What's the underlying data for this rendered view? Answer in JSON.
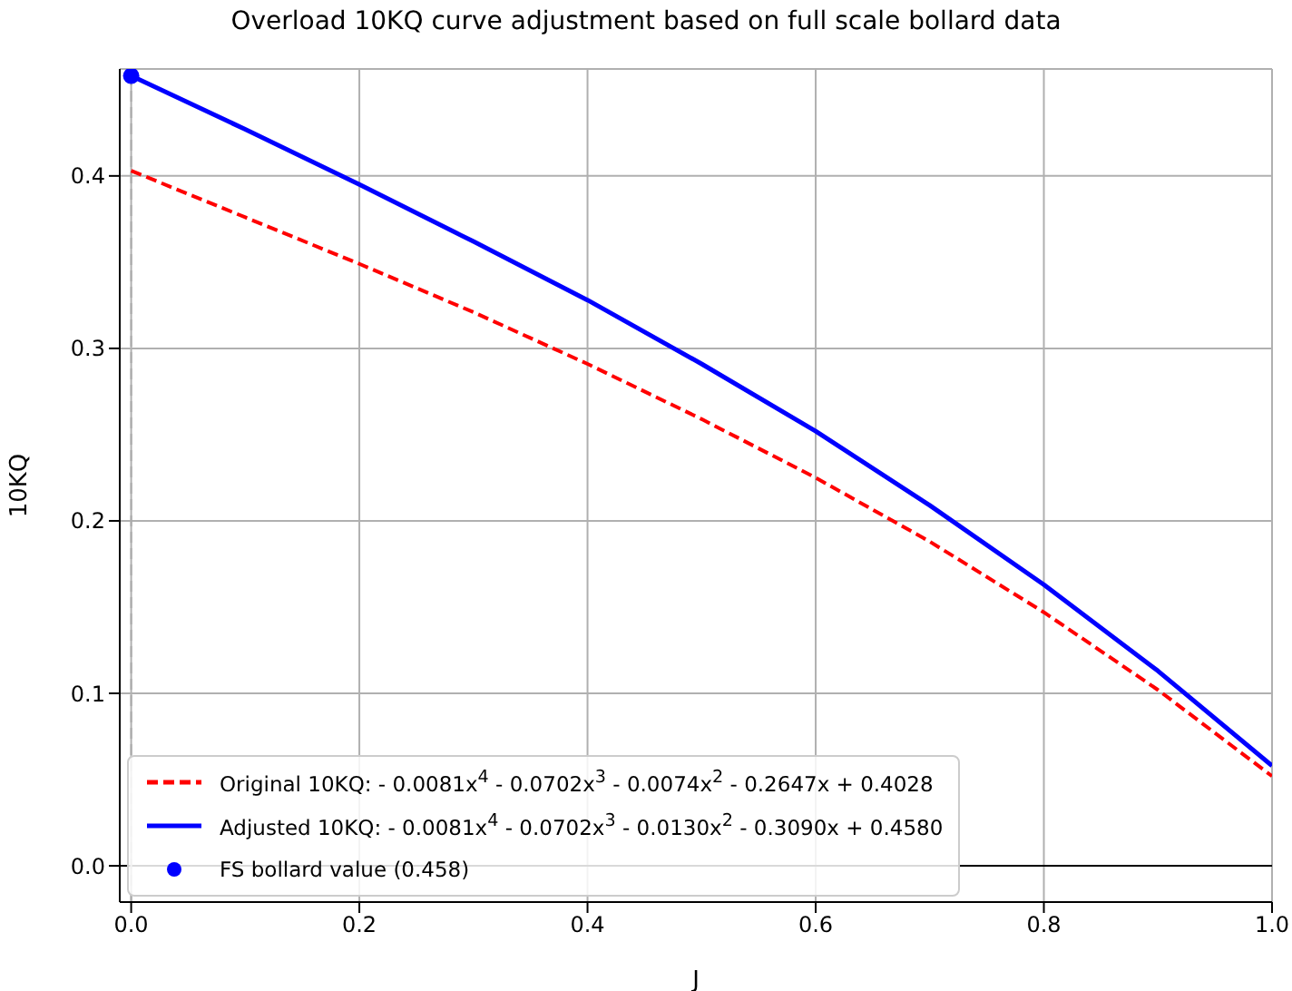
{
  "chart_data": {
    "type": "line",
    "title": "Overload 10KQ curve adjustment based on full scale bollard data",
    "xlabel": "J",
    "ylabel": "10KQ",
    "xlim": [
      -0.01,
      1.0
    ],
    "ylim": [
      -0.021,
      0.462
    ],
    "xticks": [
      {
        "value": 0,
        "label": "0.0"
      },
      0.2,
      0.4,
      0.6,
      0.8,
      {
        "value": 1,
        "label": "1.0"
      }
    ],
    "yticks": [
      {
        "value": 0,
        "label": "0.0"
      },
      0.1,
      0.2,
      0.3,
      0.4
    ],
    "grid": true,
    "legend": "bottom left",
    "series": [
      {
        "name": "Original 10KQ: - 0.0081x$^{4}$ - 0.0702x$^{3}$ - 0.0074x$^{2}$ - 0.2647x + 0.4028",
        "color": "#ff0000",
        "line_style": "dashed",
        "x": [
          0,
          0.1,
          0.2,
          0.3,
          0.4,
          0.5,
          0.6,
          0.7,
          0.8,
          0.9,
          1.0
        ],
        "values": [
          0.403,
          0.376,
          0.349,
          0.321,
          0.291,
          0.259,
          0.225,
          0.188,
          0.147,
          0.102,
          0.052
        ]
      },
      {
        "name": "Adjusted 10KQ: - 0.0081x$^{4}$ - 0.0702x$^{3}$ - 0.0130x$^{2}$ - 0.3090x + 0.4580",
        "color": "#0000ff",
        "line_style": "solid",
        "x": [
          0,
          0.1,
          0.2,
          0.3,
          0.4,
          0.5,
          0.6,
          0.7,
          0.8,
          0.9,
          1.0
        ],
        "values": [
          0.458,
          0.427,
          0.395,
          0.362,
          0.328,
          0.291,
          0.252,
          0.209,
          0.163,
          0.113,
          0.058
        ]
      },
      {
        "name": "FS bollard value (0.458)",
        "type": "scatter",
        "color": "#0000ff",
        "marker": "circle",
        "x": [
          0
        ],
        "values": [
          0.458
        ]
      }
    ],
    "ref_lines": [
      {
        "axis": "y",
        "value": 0,
        "color": "#000000",
        "line_style": "solid"
      },
      {
        "axis": "x",
        "value": 0,
        "color": "#aaaaaa",
        "line_style": "dashed"
      }
    ]
  }
}
